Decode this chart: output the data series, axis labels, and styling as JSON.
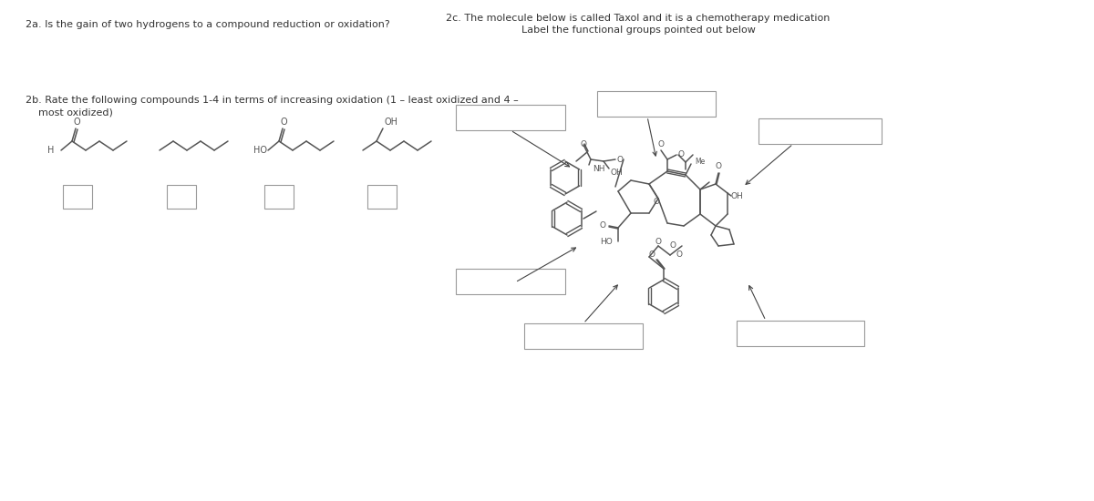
{
  "bg_color": "#ffffff",
  "text_color": "#333333",
  "line_color": "#666666",
  "question_2a": "2a. Is the gain of two hydrogens to a compound reduction or oxidation?",
  "question_2b_1": "2b. Rate the following compounds 1-4 in terms of increasing oxidation (1 – least oxidized and 4 –",
  "question_2b_2": "    most oxidized)",
  "question_2c_line1": "2c. The molecule below is called Taxol and it is a chemotherapy medication",
  "question_2c_line2": "Label the functional groups pointed out below",
  "font_size_q": 8.0,
  "mol_color": "#555555",
  "box_color": "#999999"
}
